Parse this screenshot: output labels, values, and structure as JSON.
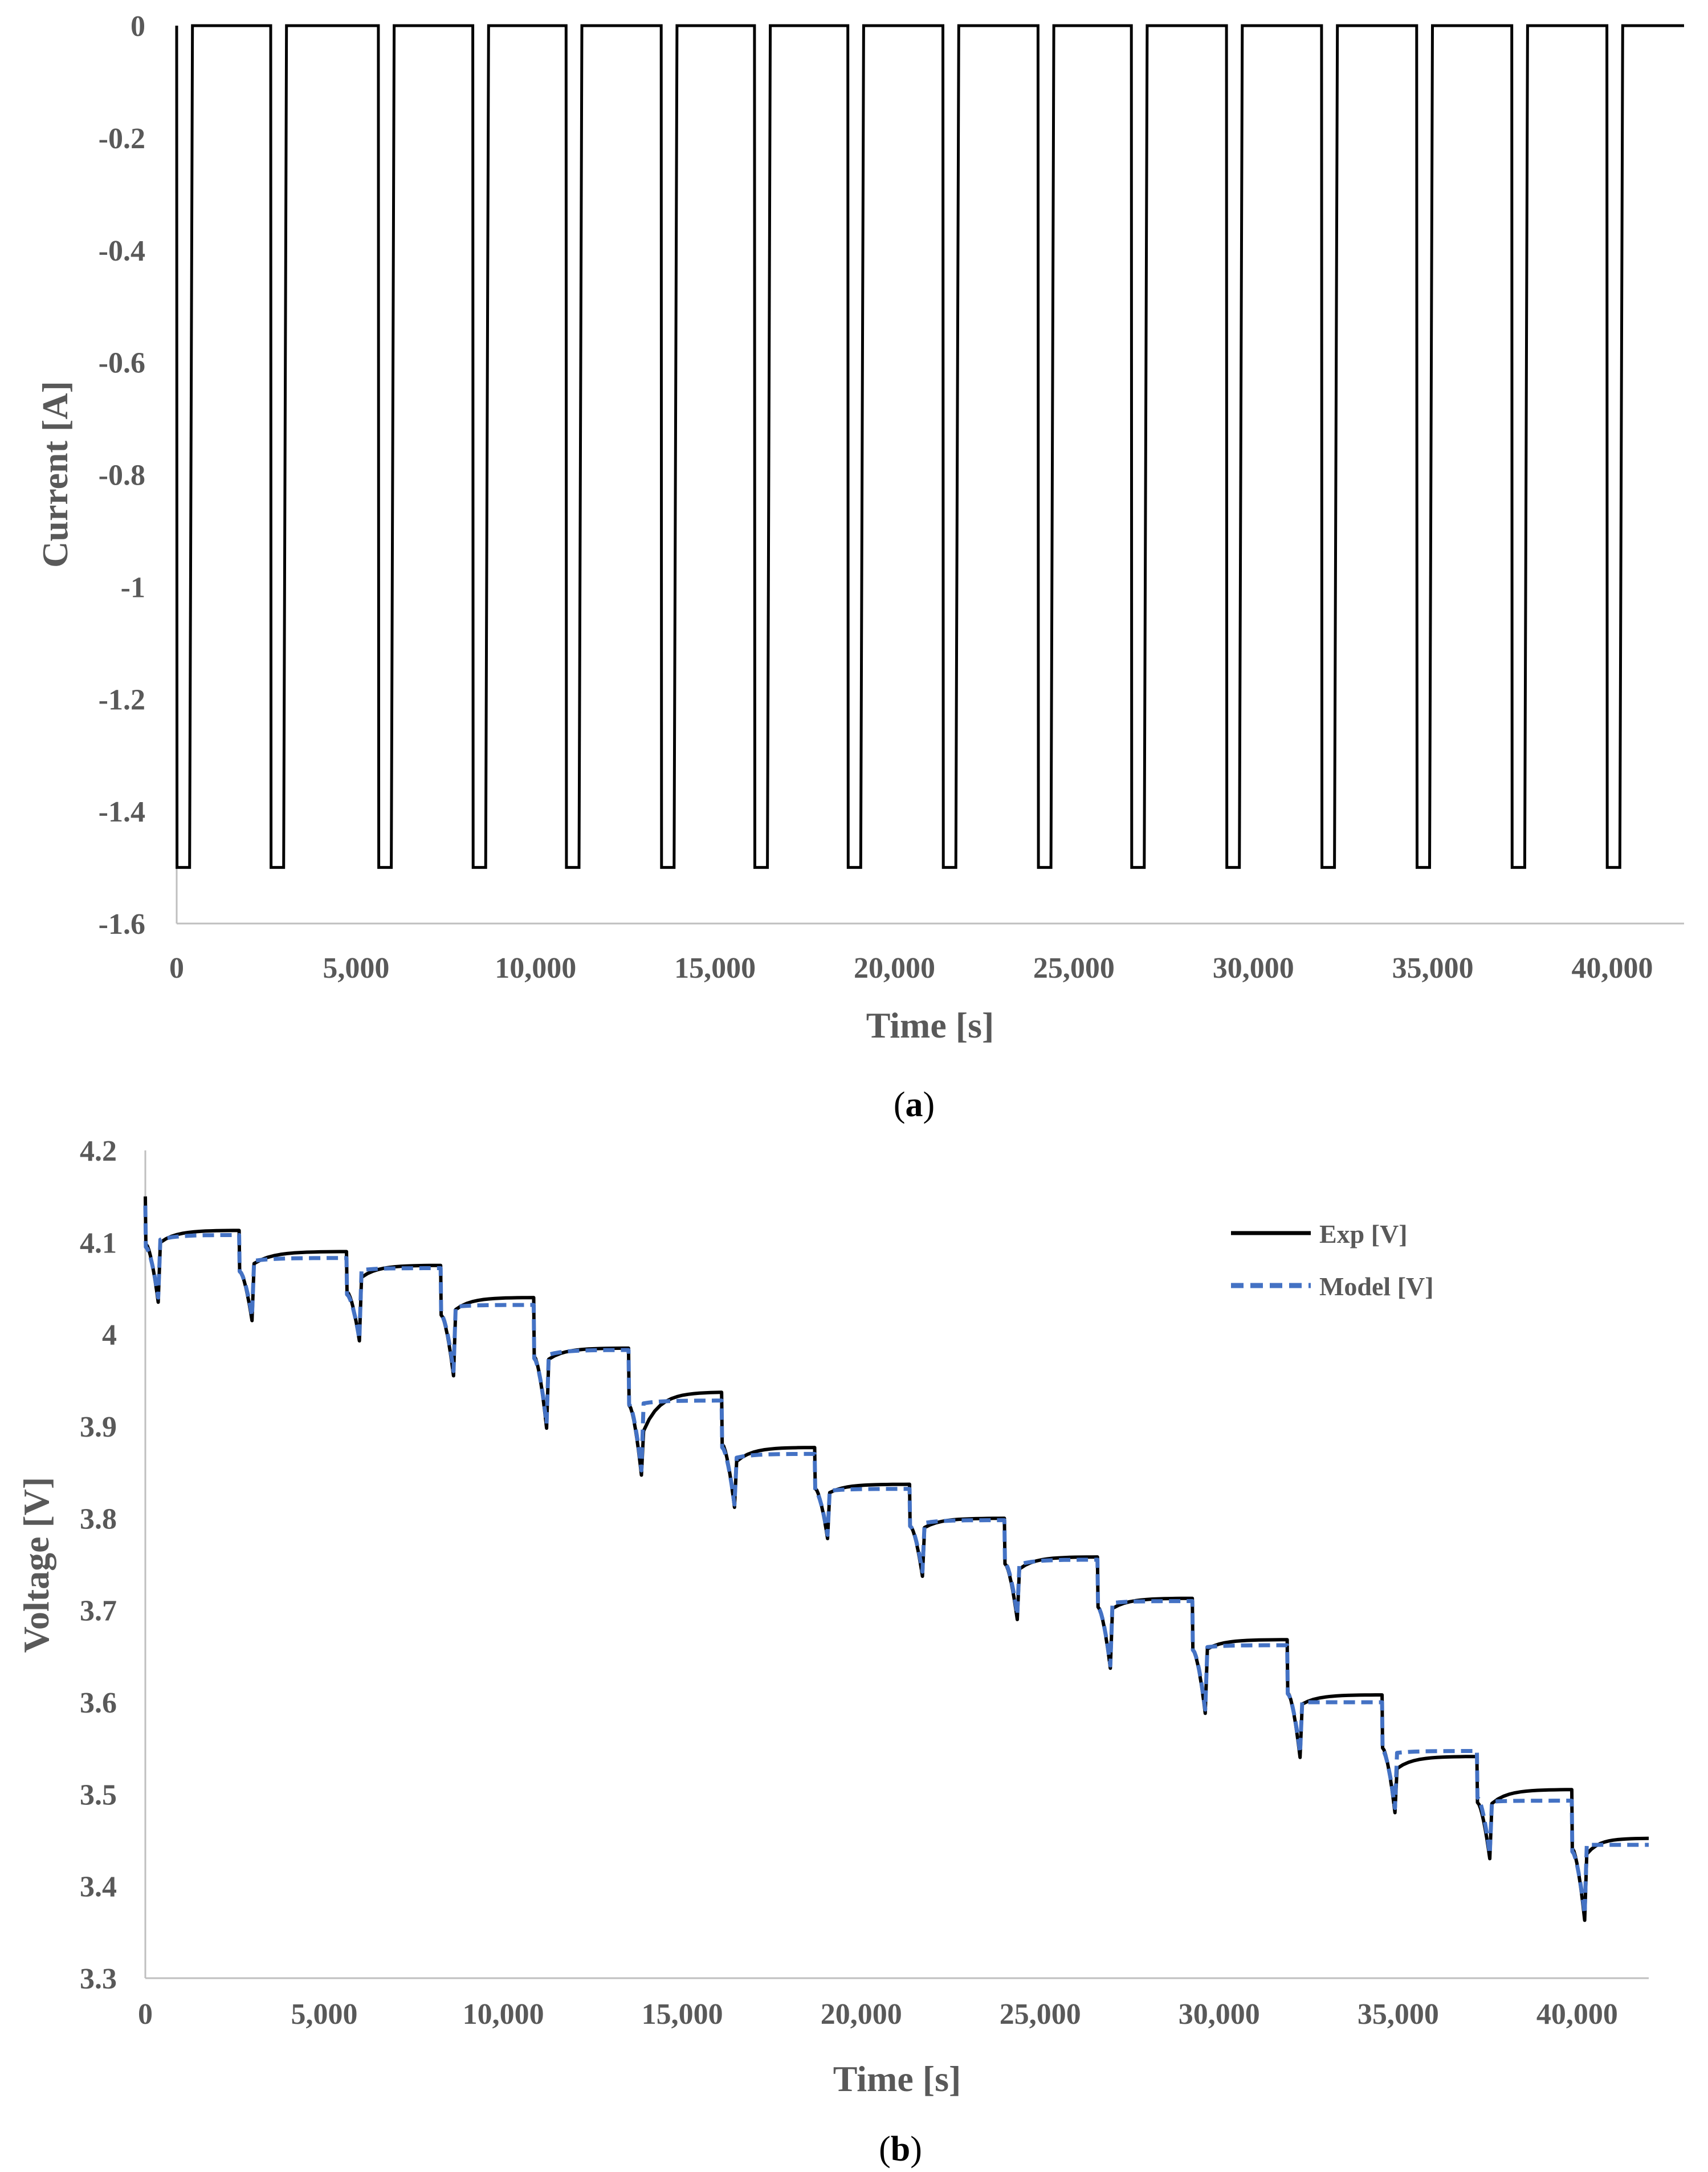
{
  "chart_data": [
    {
      "id": "a",
      "type": "line",
      "caption": "a",
      "xlabel": "Time [s]",
      "ylabel": "Current [A]",
      "xlim": [
        0,
        42000
      ],
      "ylim": [
        -1.6,
        0
      ],
      "xticks": [
        0,
        5000,
        10000,
        15000,
        20000,
        25000,
        30000,
        35000,
        40000
      ],
      "xtick_labels": [
        "0",
        "5,000",
        "10,000",
        "15,000",
        "20,000",
        "25,000",
        "30,000",
        "35,000",
        "40,000"
      ],
      "yticks": [
        0,
        -0.2,
        -0.4,
        -0.6,
        -0.8,
        -1,
        -1.2,
        -1.4,
        -1.6
      ],
      "ytick_labels": [
        "0",
        "-0.2",
        "-0.4",
        "-0.6",
        "-0.8",
        "-1",
        "-1.2",
        "-1.4",
        "-1.6"
      ],
      "series": [
        {
          "name": "Current [A]",
          "color": "#000000",
          "pulse_current": -1.5,
          "rest_current": 0,
          "pulse_duration_s": 360,
          "pulse_starts_s": [
            0,
            2620,
            5620,
            8250,
            10850,
            13500,
            16100,
            18700,
            21350,
            24000,
            26600,
            29250,
            31900,
            34550,
            37200,
            39850
          ]
        }
      ]
    },
    {
      "id": "b",
      "type": "line",
      "caption": "b",
      "xlabel": "Time [s]",
      "ylabel": "Voltage [V]",
      "xlim": [
        0,
        42000
      ],
      "ylim": [
        3.3,
        4.2
      ],
      "xticks": [
        0,
        5000,
        10000,
        15000,
        20000,
        25000,
        30000,
        35000,
        40000
      ],
      "xtick_labels": [
        "0",
        "5,000",
        "10,000",
        "15,000",
        "20,000",
        "25,000",
        "30,000",
        "35,000",
        "40,000"
      ],
      "yticks": [
        3.3,
        3.4,
        3.5,
        3.6,
        3.7,
        3.8,
        3.9,
        4,
        4.1,
        4.2
      ],
      "ytick_labels": [
        "3.3",
        "3.4",
        "3.5",
        "3.6",
        "3.7",
        "3.8",
        "3.9",
        "4",
        "4.1",
        "4.2"
      ],
      "legend": {
        "position": "top-right",
        "entries": [
          "Exp [V]",
          "Model [V]"
        ]
      },
      "pulse_starts_s": [
        0,
        2620,
        5620,
        8250,
        10850,
        13500,
        16100,
        18700,
        21350,
        24000,
        26600,
        29250,
        31900,
        34550,
        37200,
        39850
      ],
      "pulse_duration_s": 360,
      "series": [
        {
          "name": "Exp [V]",
          "color": "#000000",
          "dash": "solid",
          "rest_start_v": [
            4.15,
            4.113,
            4.09,
            4.075,
            4.04,
            3.985,
            3.937,
            3.877,
            3.837,
            3.8,
            3.758,
            3.713,
            3.668,
            3.608,
            3.541,
            3.505
          ],
          "pulse_end_v": [
            4.035,
            4.015,
            3.993,
            3.955,
            3.898,
            3.847,
            3.812,
            3.778,
            3.737,
            3.69,
            3.637,
            3.588,
            3.54,
            3.48,
            3.43,
            3.363
          ],
          "recovery_v": [
            4.1,
            4.077,
            4.062,
            4.027,
            3.973,
            3.895,
            3.862,
            3.828,
            3.79,
            3.745,
            3.702,
            3.658,
            3.598,
            3.528,
            3.49,
            3.435
          ],
          "rest_end_v": [
            4.113,
            4.09,
            4.075,
            4.04,
            3.985,
            3.937,
            3.877,
            3.837,
            3.8,
            3.758,
            3.713,
            3.668,
            3.608,
            3.541,
            3.505,
            3.452
          ]
        },
        {
          "name": "Model [V]",
          "color": "#4472C4",
          "dash": "dashed",
          "rest_start_v": [
            4.14,
            4.108,
            4.083,
            4.072,
            4.032,
            3.983,
            3.928,
            3.87,
            3.832,
            3.798,
            3.755,
            3.71,
            3.662,
            3.6,
            3.547,
            3.493
          ],
          "pulse_end_v": [
            4.04,
            4.02,
            3.995,
            3.96,
            3.903,
            3.852,
            3.815,
            3.782,
            3.742,
            3.695,
            3.64,
            3.592,
            3.545,
            3.485,
            3.435,
            3.37
          ],
          "recovery_v": [
            4.103,
            4.08,
            4.07,
            4.03,
            3.978,
            3.925,
            3.866,
            3.83,
            3.795,
            3.75,
            3.708,
            3.66,
            3.6,
            3.545,
            3.492,
            3.445
          ],
          "rest_end_v": [
            4.108,
            4.083,
            4.072,
            4.032,
            3.983,
            3.928,
            3.87,
            3.832,
            3.798,
            3.755,
            3.71,
            3.662,
            3.6,
            3.547,
            3.493,
            3.445
          ]
        }
      ]
    }
  ]
}
